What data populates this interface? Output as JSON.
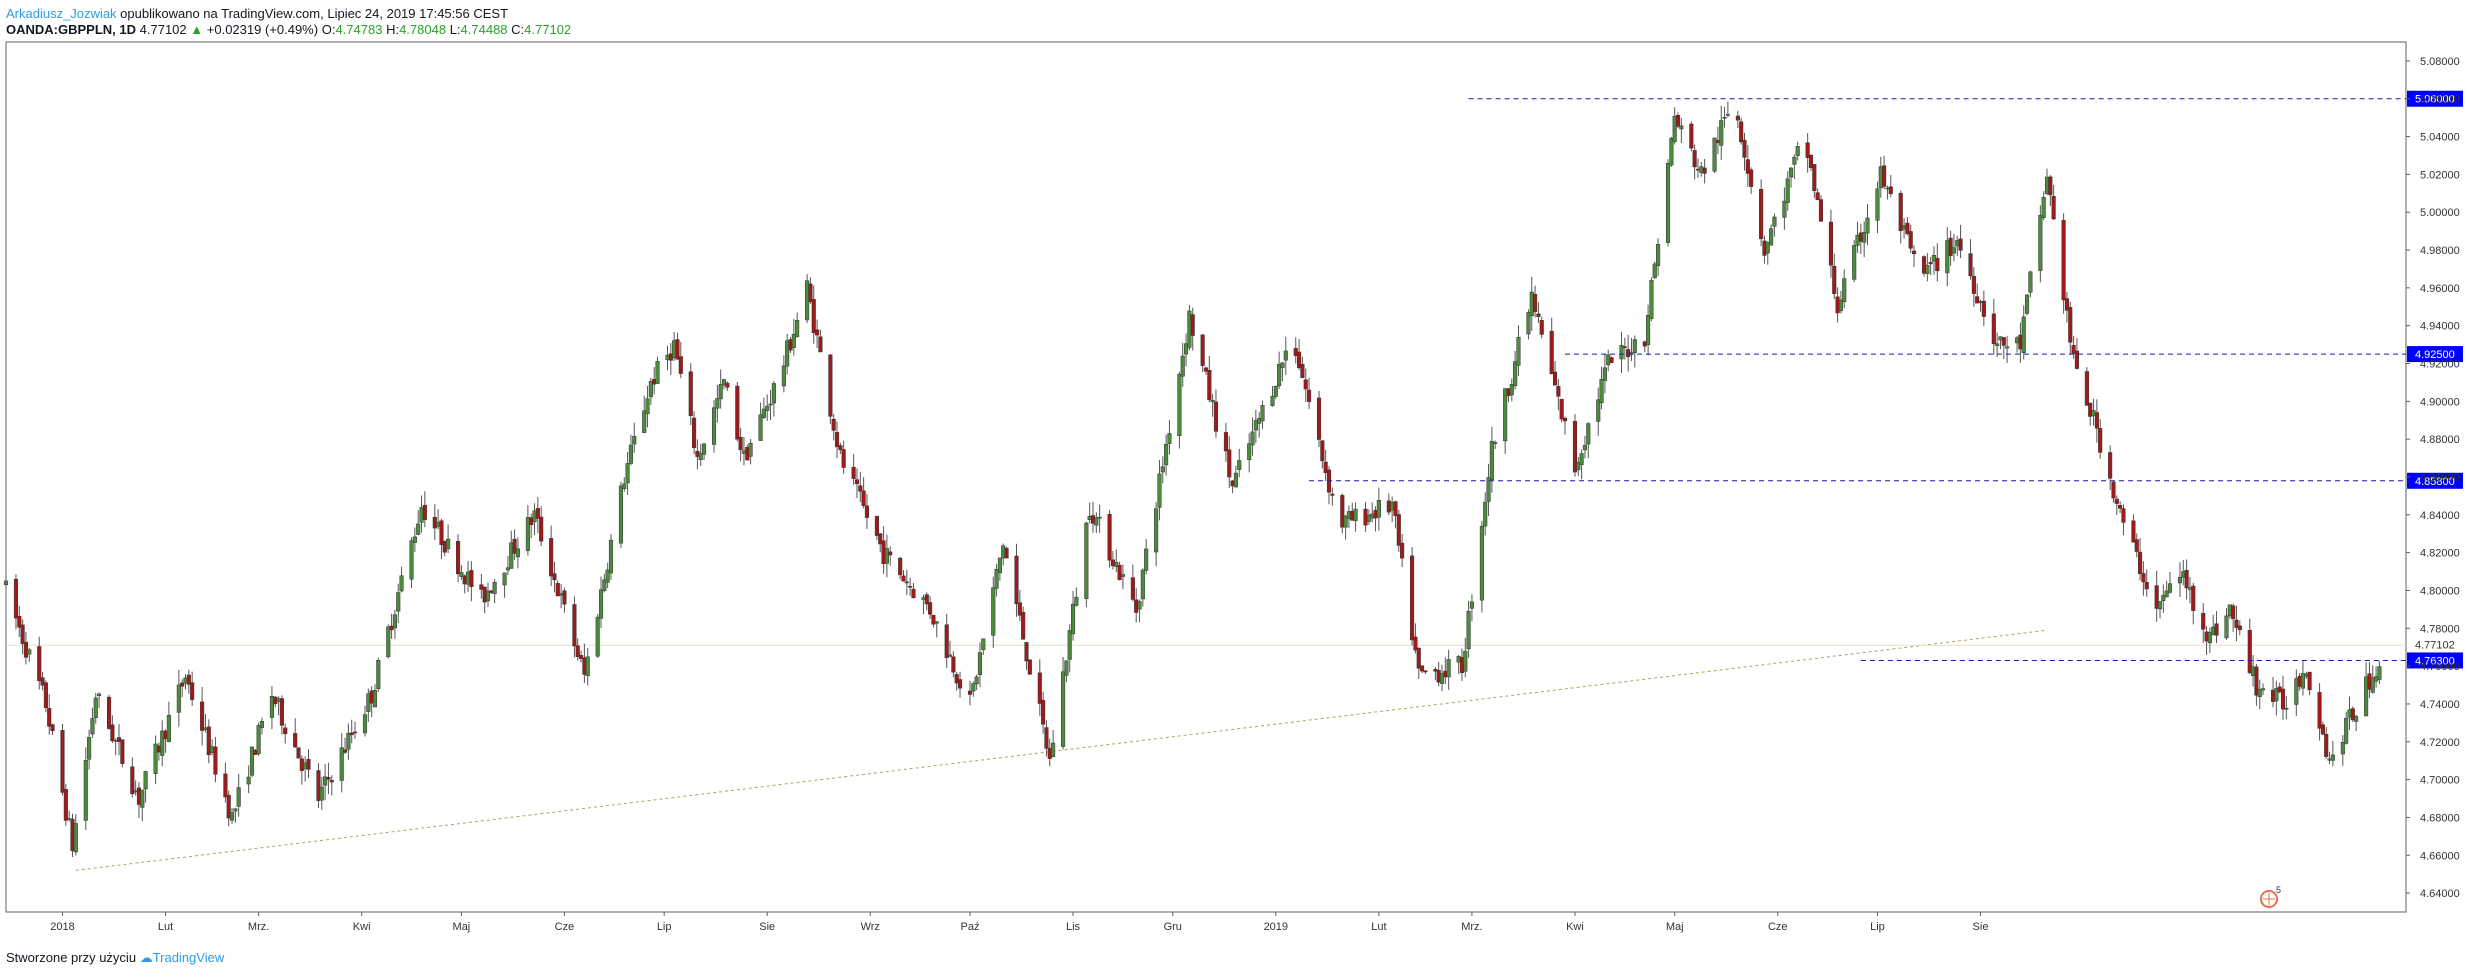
{
  "header": {
    "author": "Arkadiusz_Jozwiak",
    "published": "opublikowano na TradingView.com, Lipiec 24, 2019 17:45:56 CEST",
    "symbol": "OANDA:GBPPLN, 1D",
    "last": "4.77102",
    "change_arrow": "▲",
    "change": "+0.02319 (+0.49%)",
    "o_label": "O:",
    "o": "4.74783",
    "h_label": "H:",
    "h": "4.78048",
    "l_label": "L:",
    "l": "4.74488",
    "c_label": "C:",
    "c": "4.77102"
  },
  "footer": {
    "text": "Stworzone przy użyciu",
    "brand": "TradingView"
  },
  "colors": {
    "up": "#4c8a3e",
    "down": "#9d1b1b",
    "level": "#1a1aa8",
    "tag": "#0000ff",
    "trend": "#a6a661"
  },
  "chart_data": {
    "type": "candlestick",
    "ylim": [
      4.63,
      5.09
    ],
    "y_ticks": [
      "4.64000",
      "4.66000",
      "4.68000",
      "4.70000",
      "4.72000",
      "4.74000",
      "4.76000",
      "4.78000",
      "4.80000",
      "4.82000",
      "4.84000",
      "4.86000",
      "4.88000",
      "4.90000",
      "4.92000",
      "4.94000",
      "4.96000",
      "4.98000",
      "5.00000",
      "5.02000",
      "5.04000",
      "5.06000",
      "5.08000"
    ],
    "x_labels": [
      "2018",
      "Lut",
      "Mrz.",
      "Kwi",
      "Maj",
      "Cze",
      "Lip",
      "Sie",
      "Wrz",
      "Paź",
      "Lis",
      "Gru",
      "2019",
      "Lut",
      "Mrz.",
      "Kwi",
      "Maj",
      "Cze",
      "Lip",
      "Sie"
    ],
    "horizontal_levels": [
      {
        "value": 5.06,
        "label": "5.06000",
        "from": "2019-02-28"
      },
      {
        "value": 4.925,
        "label": "4.92500",
        "from": "2019-03-29"
      },
      {
        "value": 4.858,
        "label": "4.85800",
        "from": "2019-01-11"
      },
      {
        "value": 4.763,
        "label": "4.76300",
        "from": "2019-06-26"
      }
    ],
    "last_price": {
      "value": 4.77102,
      "label": "4.77102"
    },
    "trendline": {
      "from": {
        "date": "2018-01-05",
        "value": 4.652
      },
      "to": {
        "date": "2019-08-21",
        "value": 4.779
      }
    },
    "path": [
      [
        "2017-12-15",
        4.805
      ],
      [
        "2017-12-28",
        4.74
      ],
      [
        "2018-01-05",
        4.665
      ],
      [
        "2018-01-12",
        4.745
      ],
      [
        "2018-01-25",
        4.69
      ],
      [
        "2018-02-08",
        4.755
      ],
      [
        "2018-02-22",
        4.68
      ],
      [
        "2018-03-06",
        4.745
      ],
      [
        "2018-03-20",
        4.69
      ],
      [
        "2018-04-05",
        4.745
      ],
      [
        "2018-04-20",
        4.845
      ],
      [
        "2018-05-08",
        4.795
      ],
      [
        "2018-05-24",
        4.84
      ],
      [
        "2018-06-08",
        4.755
      ],
      [
        "2018-06-20",
        4.86
      ],
      [
        "2018-06-28",
        4.91
      ],
      [
        "2018-07-05",
        4.93
      ],
      [
        "2018-07-12",
        4.87
      ],
      [
        "2018-07-20",
        4.91
      ],
      [
        "2018-07-26",
        4.87
      ],
      [
        "2018-08-06",
        4.915
      ],
      [
        "2018-08-14",
        4.96
      ],
      [
        "2018-08-24",
        4.87
      ],
      [
        "2018-09-06",
        4.82
      ],
      [
        "2018-09-20",
        4.79
      ],
      [
        "2018-10-02",
        4.74
      ],
      [
        "2018-10-12",
        4.825
      ],
      [
        "2018-10-26",
        4.71
      ],
      [
        "2018-11-07",
        4.845
      ],
      [
        "2018-11-21",
        4.79
      ],
      [
        "2018-12-07",
        4.945
      ],
      [
        "2018-12-20",
        4.855
      ],
      [
        "2019-01-07",
        4.935
      ],
      [
        "2019-01-21",
        4.835
      ],
      [
        "2019-02-06",
        4.845
      ],
      [
        "2019-02-14",
        4.755
      ],
      [
        "2019-02-27",
        4.76
      ],
      [
        "2019-03-08",
        4.875
      ],
      [
        "2019-03-20",
        4.955
      ],
      [
        "2019-04-02",
        4.865
      ],
      [
        "2019-04-12",
        4.92
      ],
      [
        "2019-04-23",
        4.935
      ],
      [
        "2019-05-02",
        5.05
      ],
      [
        "2019-05-10",
        5.02
      ],
      [
        "2019-05-20",
        5.06
      ],
      [
        "2019-05-29",
        4.98
      ],
      [
        "2019-06-10",
        5.04
      ],
      [
        "2019-06-20",
        4.95
      ],
      [
        "2019-07-03",
        5.02
      ],
      [
        "2019-07-15",
        4.965
      ],
      [
        "2019-07-26",
        4.985
      ],
      [
        "2019-08-07",
        4.93
      ],
      [
        "2019-08-14",
        4.93
      ],
      [
        "2019-08-22",
        5.02
      ],
      [
        "2019-08-30",
        4.92
      ],
      [
        "2019-09-06",
        4.885
      ],
      [
        "2019-09-13",
        4.84
      ],
      [
        "2019-09-24",
        4.79
      ],
      [
        "2019-10-01",
        4.81
      ],
      [
        "2019-10-10",
        4.775
      ],
      [
        "2019-10-16",
        4.79
      ],
      [
        "2019-10-24",
        4.75
      ],
      [
        "2019-11-01",
        4.74
      ],
      [
        "2019-11-08",
        4.76
      ],
      [
        "2019-11-15",
        4.71
      ],
      [
        "2019-11-22",
        4.735
      ],
      [
        "2019-12-02",
        4.77
      ]
    ]
  }
}
